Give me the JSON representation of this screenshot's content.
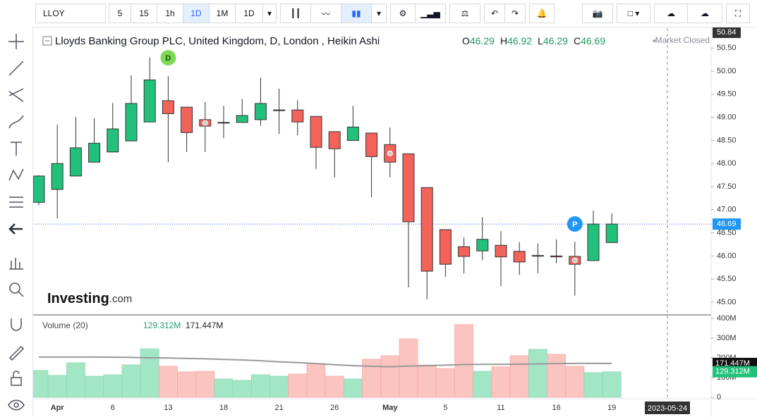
{
  "toolbar": {
    "symbol": "LLOY",
    "intervals": [
      "5",
      "15",
      "1h",
      "1D",
      "1M",
      "1D"
    ]
  },
  "chart_data": {
    "type": "candlestick",
    "title": "Lloyds Banking Group PLC, United Kingdom, D, London , Heikin Ashi",
    "ohlc_labels": [
      "O",
      "H",
      "L",
      "C"
    ],
    "status": "Market Closed",
    "categories": [
      null,
      "Apr",
      null,
      null,
      "6",
      null,
      null,
      "13",
      null,
      null,
      "18",
      null,
      null,
      "21",
      null,
      null,
      "26",
      null,
      null,
      "May",
      null,
      null,
      "5",
      null,
      null,
      "11",
      null,
      null,
      "16",
      null,
      null,
      "19"
    ],
    "open": [
      47.16,
      47.44,
      47.73,
      48.03,
      48.25,
      48.49,
      48.9,
      49.36,
      49.22,
      48.95,
      48.88,
      48.89,
      48.95,
      49.15,
      49.16,
      49.02,
      48.69,
      48.5,
      48.66,
      48.41,
      48.21,
      47.48,
      46.57,
      46.2,
      46.11,
      46.23,
      46.1,
      46.0,
      46.0,
      45.99,
      45.9,
      46.29
    ],
    "high": [
      47.75,
      48.84,
      49.01,
      48.98,
      49.31,
      49.91,
      50.3,
      49.89,
      49.22,
      49.33,
      49.25,
      49.4,
      49.86,
      49.62,
      49.37,
      49.02,
      48.69,
      49.25,
      48.66,
      48.78,
      48.21,
      47.48,
      46.57,
      46.4,
      46.84,
      46.54,
      46.3,
      46.27,
      46.36,
      46.31,
      46.98,
      46.92
    ],
    "low": [
      47.1,
      46.81,
      47.73,
      48.03,
      48.25,
      48.49,
      48.9,
      48.03,
      48.25,
      48.25,
      48.55,
      48.89,
      48.82,
      48.64,
      48.61,
      47.88,
      47.7,
      48.5,
      47.27,
      47.7,
      45.32,
      45.06,
      45.55,
      45.62,
      45.91,
      45.35,
      45.59,
      45.62,
      45.84,
      45.14,
      45.9,
      46.29
    ],
    "close": [
      47.73,
      48.0,
      48.34,
      48.44,
      48.75,
      49.3,
      49.81,
      49.08,
      48.67,
      48.81,
      48.89,
      49.04,
      49.3,
      49.16,
      48.9,
      48.35,
      48.32,
      48.79,
      48.15,
      48.03,
      46.74,
      45.67,
      45.82,
      45.99,
      46.36,
      45.98,
      45.87,
      46.01,
      45.98,
      45.82,
      46.69,
      46.69
    ],
    "up_color": "#22c17b",
    "down_color": "#f4635a",
    "ylim": [
      44.74,
      50.93
    ],
    "yticks": [
      {
        "value": 45,
        "label": "45.00"
      },
      {
        "value": 45.5,
        "label": "45.50"
      },
      {
        "value": 46,
        "label": "46.00"
      },
      {
        "value": 46.5,
        "label": "46.50"
      },
      {
        "value": 47,
        "label": "47.00"
      },
      {
        "value": 47.5,
        "label": "47.50"
      },
      {
        "value": 48,
        "label": "48.00"
      },
      {
        "value": 48.5,
        "label": "48.50"
      },
      {
        "value": 49,
        "label": "49.00"
      },
      {
        "value": 49.5,
        "label": "49.50"
      },
      {
        "value": 50,
        "label": "50.00"
      },
      {
        "value": 50.5,
        "label": "50.50"
      }
    ],
    "last_price": 46.69,
    "crosshair": {
      "price": 50.84,
      "date": "2023-05-24"
    },
    "markers": [
      "D",
      "P"
    ],
    "logo": [
      "Investing",
      ".com"
    ],
    "volume": {
      "title": "Volume (20)",
      "values": [
        136,
        111,
        175,
        107,
        114,
        164,
        246,
        157,
        129,
        132,
        93,
        86,
        114,
        107,
        118,
        171,
        107,
        93,
        193,
        211,
        296,
        164,
        146,
        368,
        132,
        154,
        211,
        243,
        218,
        157,
        125,
        129.312
      ],
      "ma": [
        204,
        204,
        204,
        204,
        203,
        202,
        200,
        199,
        197,
        195,
        192,
        189,
        185,
        180,
        176,
        171,
        165,
        160,
        157,
        155,
        158,
        160,
        163,
        166,
        167,
        167,
        168,
        169,
        171,
        172,
        172,
        171.447
      ],
      "current": {
        "value": 129.312,
        "label": "129.312M"
      },
      "ma_current": {
        "value": 171.447,
        "label": "171.447M"
      },
      "ylim": [
        0,
        407
      ],
      "yticks": [
        0,
        {
          "value": 100,
          "label": "100M"
        },
        {
          "value": 200,
          "label": "200M"
        },
        {
          "value": 300,
          "label": "300M"
        },
        {
          "value": 400,
          "label": "400M"
        }
      ]
    }
  }
}
